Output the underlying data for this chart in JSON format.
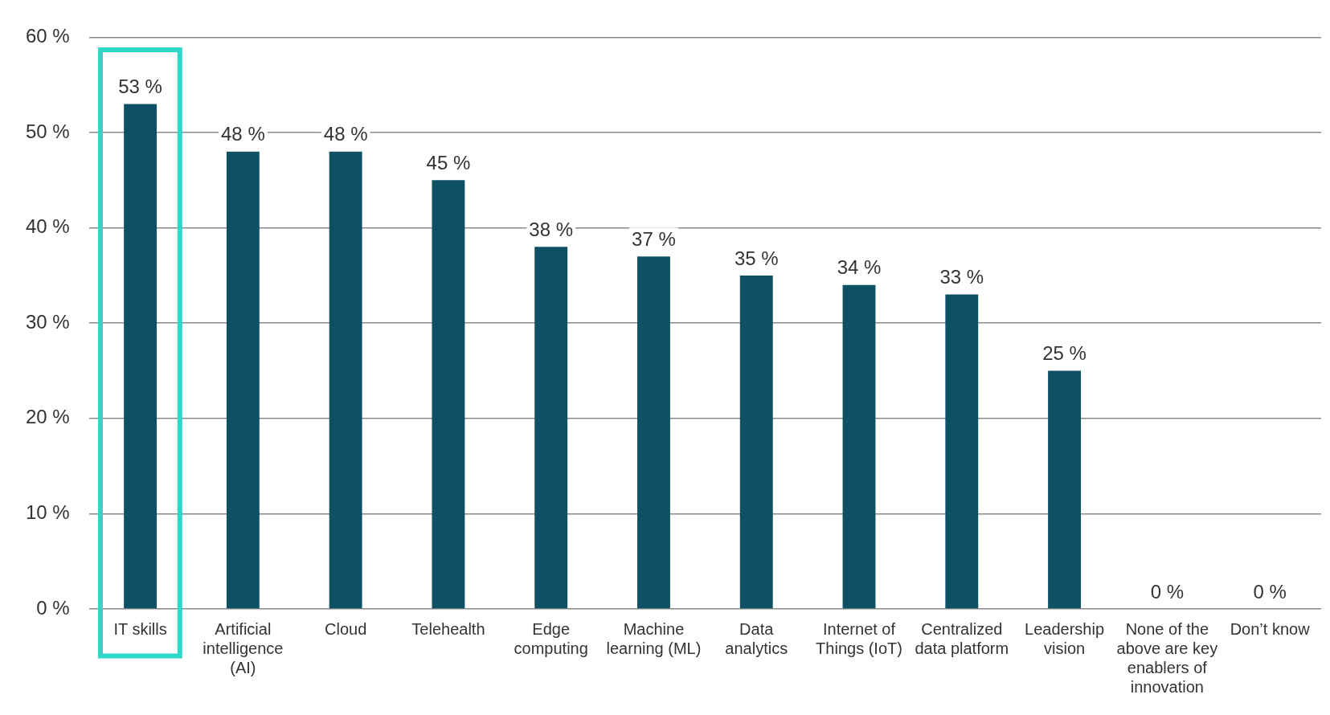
{
  "chart_data": {
    "type": "bar",
    "categories": [
      "IT skills",
      "Artificial intelligence (AI)",
      "Cloud",
      "Telehealth",
      "Edge computing",
      "Machine learning (ML)",
      "Data analytics",
      "Internet of Things (IoT)",
      "Centralized data platform",
      "Leadership vision",
      "None of the above are key enablers of innovation",
      "Don’t know"
    ],
    "values": [
      53,
      48,
      48,
      45,
      38,
      37,
      35,
      34,
      33,
      25,
      0,
      0
    ],
    "value_labels": [
      "53 %",
      "48 %",
      "48 %",
      "45 %",
      "38 %",
      "37 %",
      "35 %",
      "34 %",
      "33 %",
      "25 %",
      "0 %",
      "0 %"
    ],
    "color": "#0e5165",
    "ylim": [
      0,
      60
    ],
    "yticks": [
      {
        "value": 0,
        "label": "0 %"
      },
      {
        "value": 10,
        "label": "10 %"
      },
      {
        "value": 20,
        "label": "20 %"
      },
      {
        "value": 30,
        "label": "30 %"
      },
      {
        "value": 40,
        "label": "40 %"
      },
      {
        "value": 50,
        "label": "50 %"
      },
      {
        "value": 60,
        "label": "60 %"
      }
    ],
    "grid": "y",
    "legend": false
  }
}
